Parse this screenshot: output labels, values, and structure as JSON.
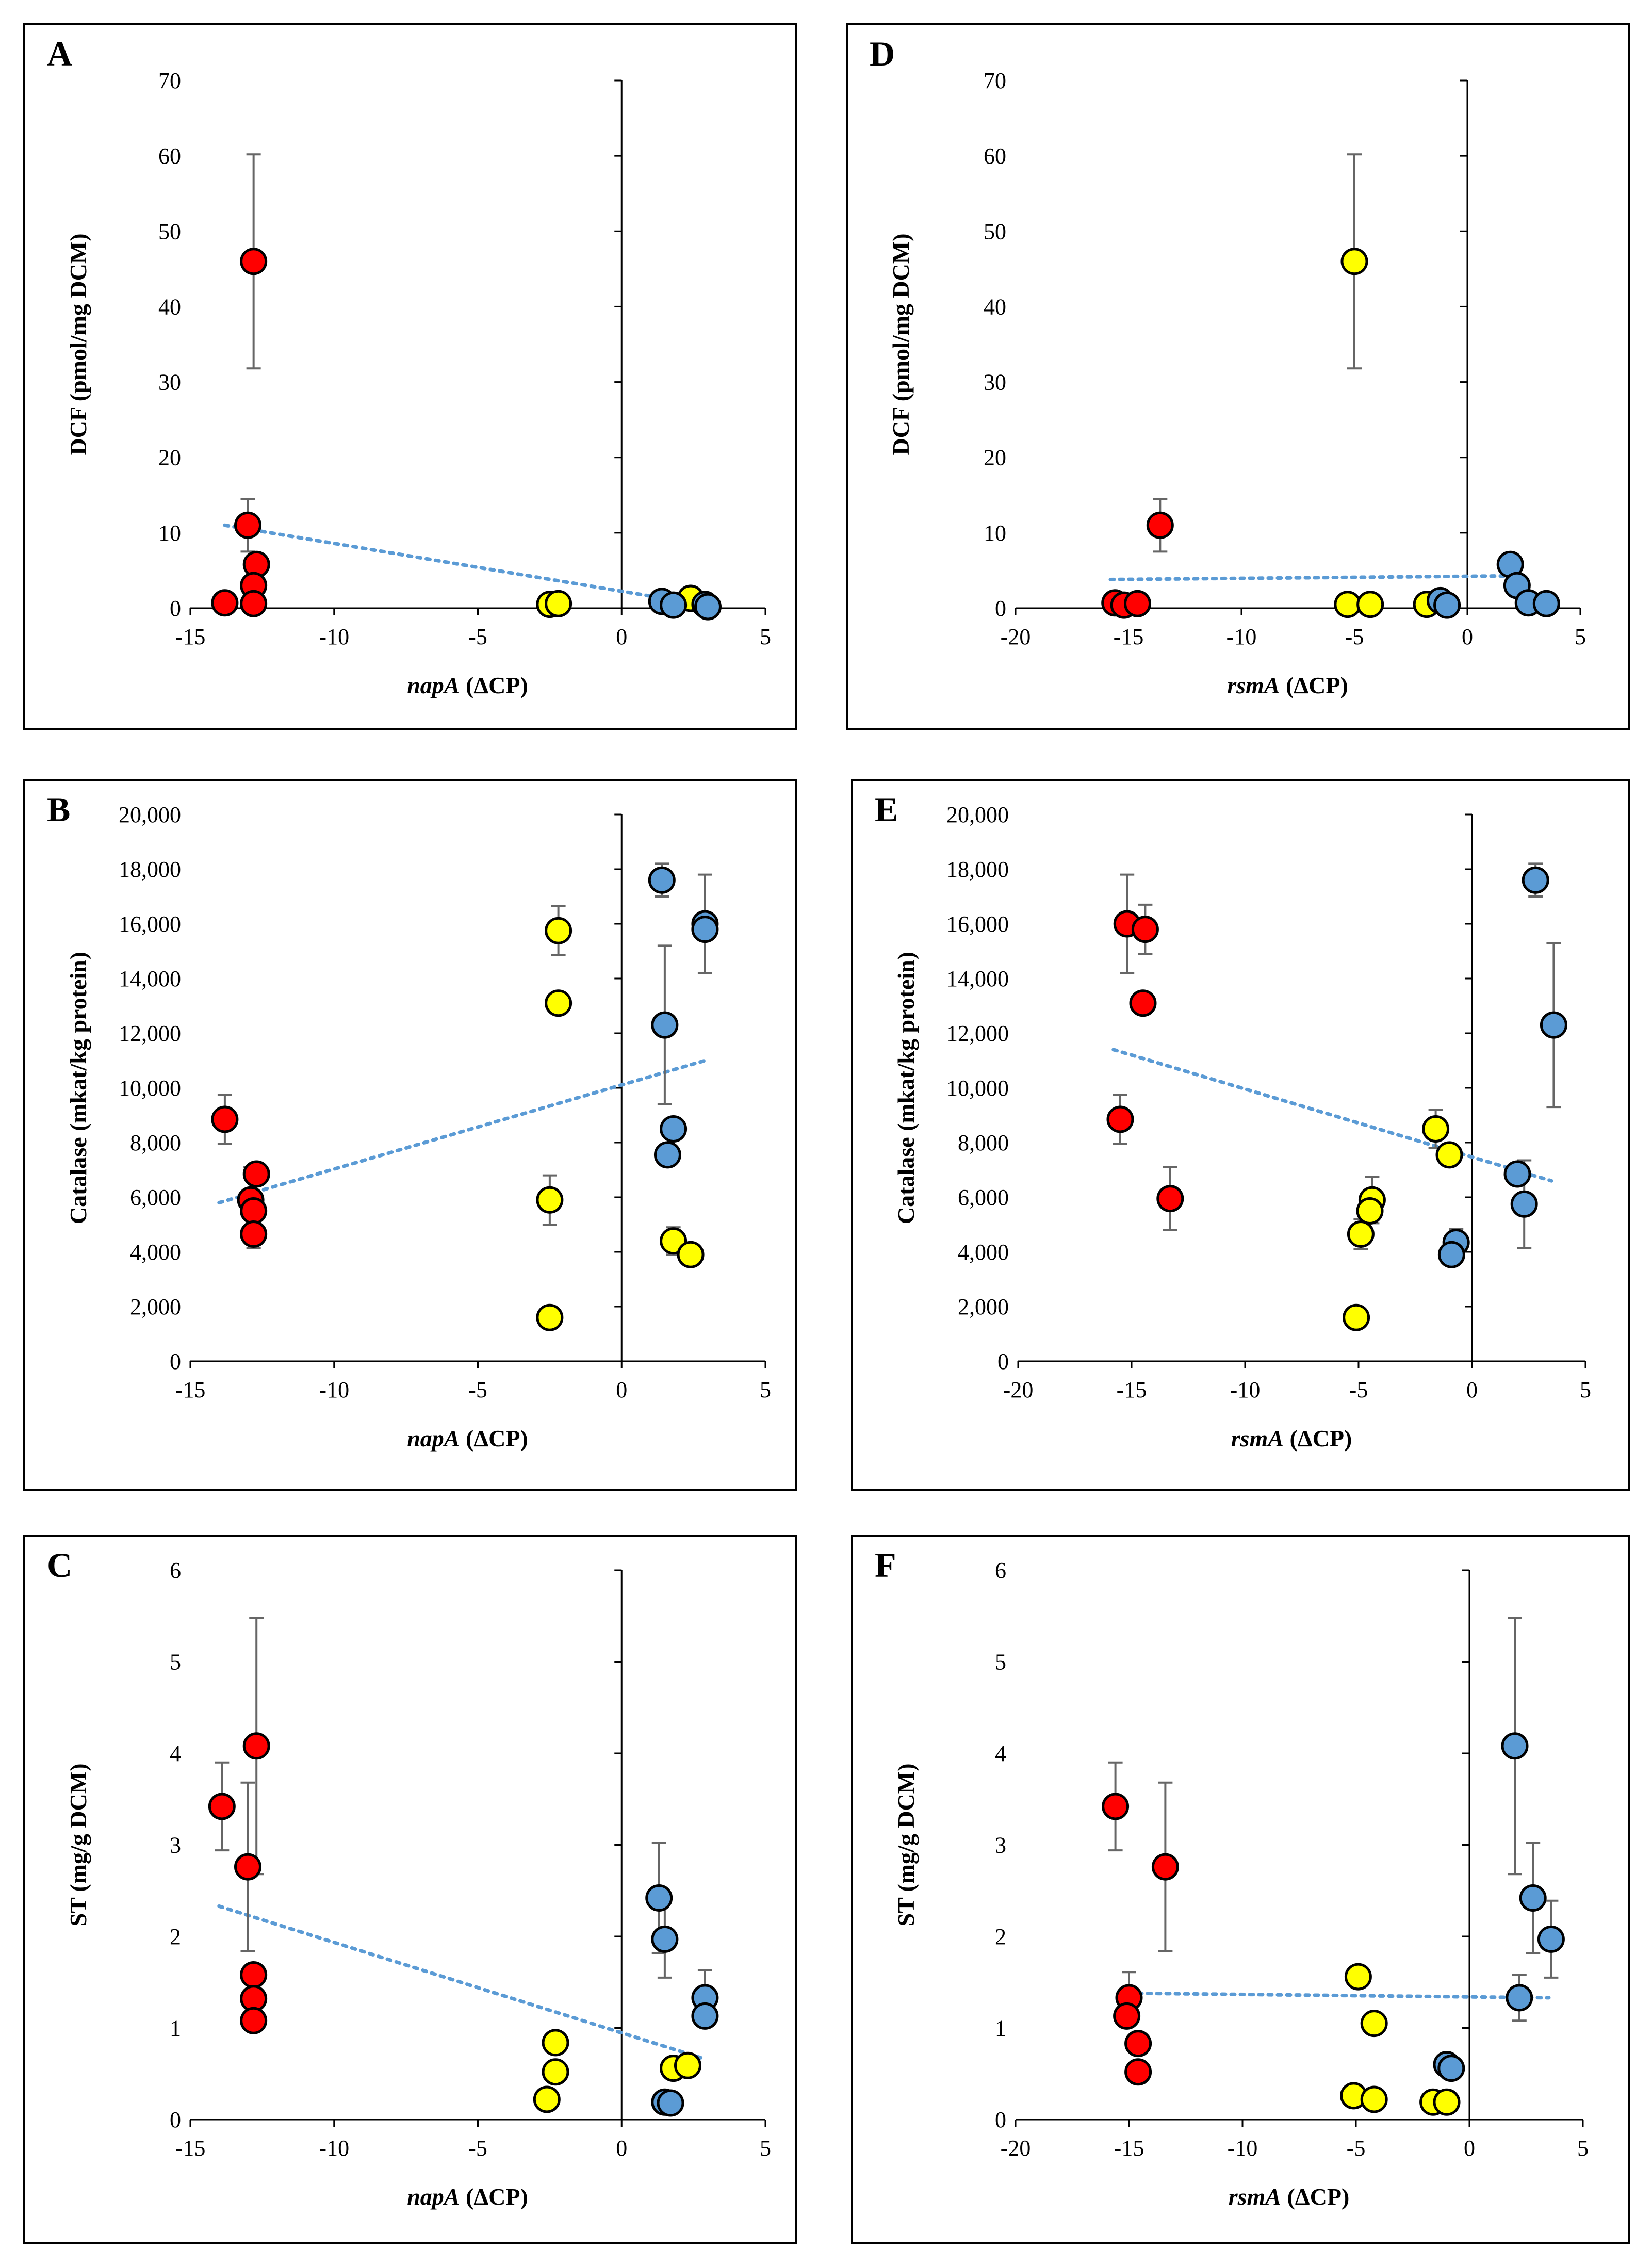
{
  "colors": {
    "red": "#ff0000",
    "yellow": "#ffff00",
    "blue": "#5b9bd5",
    "trend": "#5b9bd5",
    "error_bar": "#666666"
  },
  "chart_data": [
    {
      "id": "A",
      "type": "scatter",
      "letter": "A",
      "xlabel_italic": "napA",
      "xlabel_rest": " (ΔCP)",
      "ylabel": "DCF (pmol/mg DCM)",
      "xlim": [
        -15,
        5
      ],
      "ylim": [
        0,
        70
      ],
      "xticks": [
        -15,
        -10,
        -5,
        0,
        5
      ],
      "yticks": [
        0,
        10,
        20,
        30,
        40,
        50,
        60,
        70
      ],
      "ytick_labels": [
        "0",
        "10",
        "20",
        "30",
        "40",
        "50",
        "60",
        "70"
      ],
      "trendline": [
        [
          -13.8,
          11.0
        ],
        [
          2.9,
          0.4
        ]
      ],
      "series": [
        {
          "name": "red",
          "color": "red",
          "points": [
            {
              "x": -13.8,
              "y": 0.7
            },
            {
              "x": -13.0,
              "y": 11.0,
              "err": 3.5
            },
            {
              "x": -12.8,
              "y": 46.0,
              "err": 14.2
            },
            {
              "x": -12.7,
              "y": 5.8
            },
            {
              "x": -12.8,
              "y": 3.0
            },
            {
              "x": -12.8,
              "y": 0.6
            }
          ]
        },
        {
          "name": "yellow",
          "color": "yellow",
          "points": [
            {
              "x": -2.5,
              "y": 0.5
            },
            {
              "x": -2.2,
              "y": 0.6
            },
            {
              "x": 2.4,
              "y": 1.3
            }
          ]
        },
        {
          "name": "blue",
          "color": "blue",
          "points": [
            {
              "x": 1.4,
              "y": 0.9
            },
            {
              "x": 1.8,
              "y": 0.4
            },
            {
              "x": 2.9,
              "y": 0.5
            },
            {
              "x": 3.0,
              "y": 0.2
            }
          ]
        }
      ]
    },
    {
      "id": "B",
      "type": "scatter",
      "letter": "B",
      "xlabel_italic": "napA",
      "xlabel_rest": " (ΔCP)",
      "ylabel": "Catalase (mkat/kg protein)",
      "xlim": [
        -15,
        5
      ],
      "ylim": [
        0,
        20000
      ],
      "xticks": [
        -15,
        -10,
        -5,
        0,
        5
      ],
      "yticks": [
        0,
        2000,
        4000,
        6000,
        8000,
        10000,
        12000,
        14000,
        16000,
        18000,
        20000
      ],
      "ytick_labels": [
        "0",
        "2,000",
        "4,000",
        "6,000",
        "8,000",
        "10,000",
        "12,000",
        "14,000",
        "16,000",
        "18,000",
        "20,000"
      ],
      "trendline": [
        [
          -14.0,
          5800
        ],
        [
          2.9,
          11000
        ]
      ],
      "series": [
        {
          "name": "red",
          "color": "red",
          "points": [
            {
              "x": -13.8,
              "y": 8850,
              "err": 900
            },
            {
              "x": -12.7,
              "y": 6850
            },
            {
              "x": -12.9,
              "y": 5900,
              "err": 1200
            },
            {
              "x": -12.8,
              "y": 5500
            },
            {
              "x": -12.8,
              "y": 4650,
              "err": 500
            }
          ]
        },
        {
          "name": "yellow",
          "color": "yellow",
          "points": [
            {
              "x": -2.2,
              "y": 15750,
              "err": 900
            },
            {
              "x": -2.2,
              "y": 13100
            },
            {
              "x": -2.5,
              "y": 5900,
              "err": 900
            },
            {
              "x": -2.5,
              "y": 1600
            },
            {
              "x": 1.8,
              "y": 4400,
              "err": 500
            },
            {
              "x": 2.4,
              "y": 3900
            }
          ]
        },
        {
          "name": "blue",
          "color": "blue",
          "points": [
            {
              "x": 1.4,
              "y": 17600,
              "err": 600
            },
            {
              "x": 2.9,
              "y": 16000,
              "err": 1800
            },
            {
              "x": 2.9,
              "y": 15800
            },
            {
              "x": 1.5,
              "y": 12300,
              "err": 2900
            },
            {
              "x": 1.8,
              "y": 8500
            },
            {
              "x": 1.6,
              "y": 7550
            }
          ]
        }
      ]
    },
    {
      "id": "C",
      "type": "scatter",
      "letter": "C",
      "xlabel_italic": "napA",
      "xlabel_rest": " (ΔCP)",
      "ylabel": "ST (mg/g DCM)",
      "xlim": [
        -15,
        5
      ],
      "ylim": [
        0,
        6
      ],
      "xticks": [
        -15,
        -10,
        -5,
        0,
        5
      ],
      "yticks": [
        0,
        1,
        2,
        3,
        4,
        5,
        6
      ],
      "ytick_labels": [
        "0",
        "1",
        "2",
        "3",
        "4",
        "5",
        "6"
      ],
      "trendline": [
        [
          -14.0,
          2.33
        ],
        [
          2.9,
          0.66
        ]
      ],
      "series": [
        {
          "name": "red",
          "color": "red",
          "points": [
            {
              "x": -13.9,
              "y": 3.42,
              "err": 0.48
            },
            {
              "x": -13.0,
              "y": 2.76,
              "err": 0.92
            },
            {
              "x": -12.7,
              "y": 4.08,
              "err": 1.4
            },
            {
              "x": -12.8,
              "y": 1.58
            },
            {
              "x": -12.8,
              "y": 1.32
            },
            {
              "x": -12.8,
              "y": 1.08
            }
          ]
        },
        {
          "name": "yellow",
          "color": "yellow",
          "points": [
            {
              "x": -2.3,
              "y": 0.84
            },
            {
              "x": -2.3,
              "y": 0.52
            },
            {
              "x": -2.6,
              "y": 0.22
            },
            {
              "x": 1.8,
              "y": 0.56
            },
            {
              "x": 2.3,
              "y": 0.59
            }
          ]
        },
        {
          "name": "blue",
          "color": "blue",
          "points": [
            {
              "x": 1.3,
              "y": 2.42,
              "err": 0.6
            },
            {
              "x": 1.5,
              "y": 1.97,
              "err": 0.42
            },
            {
              "x": 2.9,
              "y": 1.33,
              "err": 0.3
            },
            {
              "x": 2.9,
              "y": 1.13
            },
            {
              "x": 1.5,
              "y": 0.19
            },
            {
              "x": 1.7,
              "y": 0.18
            }
          ]
        }
      ]
    },
    {
      "id": "D",
      "type": "scatter",
      "letter": "D",
      "xlabel_italic": "rsmA",
      "xlabel_rest": " (ΔCP)",
      "ylabel": "DCF (pmol/mg DCM)",
      "xlim": [
        -20,
        5
      ],
      "ylim": [
        0,
        70
      ],
      "xticks": [
        -20,
        -15,
        -10,
        -5,
        0,
        5
      ],
      "yticks": [
        0,
        10,
        20,
        30,
        40,
        50,
        60,
        70
      ],
      "ytick_labels": [
        "0",
        "10",
        "20",
        "30",
        "40",
        "50",
        "60",
        "70"
      ],
      "trendline": [
        [
          -15.8,
          3.8
        ],
        [
          2.5,
          4.3
        ]
      ],
      "series": [
        {
          "name": "red",
          "color": "red",
          "points": [
            {
              "x": -15.6,
              "y": 0.7
            },
            {
              "x": -15.2,
              "y": 0.4
            },
            {
              "x": -14.6,
              "y": 0.6
            },
            {
              "x": -13.6,
              "y": 11.0,
              "err": 3.5
            }
          ]
        },
        {
          "name": "yellow",
          "color": "yellow",
          "points": [
            {
              "x": -5.0,
              "y": 46.0,
              "err": 14.2
            },
            {
              "x": -5.3,
              "y": 0.5
            },
            {
              "x": -4.3,
              "y": 0.5
            },
            {
              "x": -1.8,
              "y": 0.5
            }
          ]
        },
        {
          "name": "blue",
          "color": "blue",
          "points": [
            {
              "x": -1.2,
              "y": 1.0
            },
            {
              "x": -0.9,
              "y": 0.4
            },
            {
              "x": 1.9,
              "y": 5.8
            },
            {
              "x": 2.2,
              "y": 3.0
            },
            {
              "x": 2.7,
              "y": 0.7
            },
            {
              "x": 3.5,
              "y": 0.6
            }
          ]
        }
      ]
    },
    {
      "id": "E",
      "type": "scatter",
      "letter": "E",
      "xlabel_italic": "rsmA",
      "xlabel_rest": " (ΔCP)",
      "ylabel": "Catalase (mkat/kg protein)",
      "xlim": [
        -20,
        5
      ],
      "ylim": [
        0,
        20000
      ],
      "xticks": [
        -20,
        -15,
        -10,
        -5,
        0,
        5
      ],
      "yticks": [
        0,
        2000,
        4000,
        6000,
        8000,
        10000,
        12000,
        14000,
        16000,
        18000,
        20000
      ],
      "ytick_labels": [
        "0",
        "2,000",
        "4,000",
        "6,000",
        "8,000",
        "10,000",
        "12,000",
        "14,000",
        "16,000",
        "18,000",
        "20,000"
      ],
      "trendline": [
        [
          -15.8,
          11400
        ],
        [
          3.5,
          6600
        ]
      ],
      "series": [
        {
          "name": "red",
          "color": "red",
          "points": [
            {
              "x": -15.2,
              "y": 16000,
              "err": 1800
            },
            {
              "x": -14.4,
              "y": 15800,
              "err": 900
            },
            {
              "x": -14.5,
              "y": 13100
            },
            {
              "x": -15.5,
              "y": 8850,
              "err": 900
            },
            {
              "x": -13.3,
              "y": 5950,
              "err": 1150
            }
          ]
        },
        {
          "name": "yellow",
          "color": "yellow",
          "points": [
            {
              "x": -1.6,
              "y": 8500,
              "err": 700
            },
            {
              "x": -1.0,
              "y": 7550
            },
            {
              "x": -4.4,
              "y": 5900,
              "err": 850
            },
            {
              "x": -4.5,
              "y": 5500
            },
            {
              "x": -4.9,
              "y": 4650,
              "err": 550
            },
            {
              "x": -5.1,
              "y": 1600
            }
          ]
        },
        {
          "name": "blue",
          "color": "blue",
          "points": [
            {
              "x": 2.8,
              "y": 17600,
              "err": 600
            },
            {
              "x": 3.6,
              "y": 12300,
              "err": 3000
            },
            {
              "x": 2.0,
              "y": 6850
            },
            {
              "x": 2.3,
              "y": 5750,
              "err": 1600
            },
            {
              "x": -0.7,
              "y": 4350,
              "err": 500
            },
            {
              "x": -0.9,
              "y": 3900
            }
          ]
        }
      ]
    },
    {
      "id": "F",
      "type": "scatter",
      "letter": "F",
      "xlabel_italic": "rsmA",
      "xlabel_rest": " (ΔCP)",
      "ylabel": "ST (mg/g DCM)",
      "xlim": [
        -20,
        5
      ],
      "ylim": [
        0,
        6
      ],
      "xticks": [
        -20,
        -15,
        -10,
        -5,
        0,
        5
      ],
      "yticks": [
        0,
        1,
        2,
        3,
        4,
        5,
        6
      ],
      "ytick_labels": [
        "0",
        "1",
        "2",
        "3",
        "4",
        "5",
        "6"
      ],
      "trendline": [
        [
          -15.0,
          1.38
        ],
        [
          3.5,
          1.33
        ]
      ],
      "series": [
        {
          "name": "red",
          "color": "red",
          "points": [
            {
              "x": -15.6,
              "y": 3.42,
              "err": 0.48
            },
            {
              "x": -13.4,
              "y": 2.76,
              "err": 0.92
            },
            {
              "x": -15.0,
              "y": 1.33,
              "err": 0.28
            },
            {
              "x": -15.1,
              "y": 1.13
            },
            {
              "x": -14.6,
              "y": 0.83
            },
            {
              "x": -14.6,
              "y": 0.52,
              "err": 0.12
            }
          ]
        },
        {
          "name": "yellow",
          "color": "yellow",
          "points": [
            {
              "x": -4.9,
              "y": 1.56
            },
            {
              "x": -4.2,
              "y": 1.05
            },
            {
              "x": -5.1,
              "y": 0.26
            },
            {
              "x": -4.2,
              "y": 0.22
            },
            {
              "x": -1.6,
              "y": 0.19
            },
            {
              "x": -1.0,
              "y": 0.19
            }
          ]
        },
        {
          "name": "blue",
          "color": "blue",
          "points": [
            {
              "x": 2.0,
              "y": 4.08,
              "err": 1.4
            },
            {
              "x": 2.8,
              "y": 2.42,
              "err": 0.6
            },
            {
              "x": 3.6,
              "y": 1.97,
              "err": 0.42
            },
            {
              "x": 2.2,
              "y": 1.33,
              "err": 0.25
            },
            {
              "x": -1.0,
              "y": 0.6
            },
            {
              "x": -0.8,
              "y": 0.56
            }
          ]
        }
      ]
    }
  ]
}
